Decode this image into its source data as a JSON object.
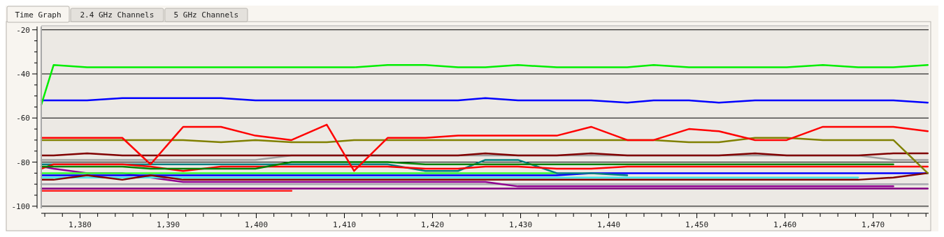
{
  "chart_data": {
    "type": "line",
    "annotations": [
      "Time Graph",
      "2.4 GHz Channels",
      "5 GHz Channels"
    ],
    "x": [
      1375.6,
      1377.0,
      1380.8,
      1384.8,
      1388.0,
      1391.7,
      1396.0,
      1399.9,
      1404.0,
      1408.0,
      1411.1,
      1414.9,
      1419.2,
      1422.9,
      1426.0,
      1429.7,
      1434.1,
      1438.0,
      1442.1,
      1445.1,
      1449.1,
      1452.5,
      1456.6,
      1460.2,
      1464.3,
      1468.3,
      1472.3,
      1476.2
    ],
    "xlim": [
      1375.6,
      1476.3
    ],
    "xticks": [
      {
        "value": 1376,
        "label": null
      },
      {
        "value": 1378,
        "label": null
      },
      {
        "value": 1380,
        "label": "1,380"
      },
      {
        "value": 1382,
        "label": null
      },
      {
        "value": 1384,
        "label": null
      },
      {
        "value": 1386,
        "label": null
      },
      {
        "value": 1388,
        "label": null
      },
      {
        "value": 1390,
        "label": "1,390"
      },
      {
        "value": 1392,
        "label": null
      },
      {
        "value": 1394,
        "label": null
      },
      {
        "value": 1396,
        "label": null
      },
      {
        "value": 1398,
        "label": null
      },
      {
        "value": 1400,
        "label": "1,400"
      },
      {
        "value": 1402,
        "label": null
      },
      {
        "value": 1404,
        "label": null
      },
      {
        "value": 1406,
        "label": null
      },
      {
        "value": 1408,
        "label": null
      },
      {
        "value": 1410,
        "label": "1,410"
      },
      {
        "value": 1412,
        "label": null
      },
      {
        "value": 1414,
        "label": null
      },
      {
        "value": 1416,
        "label": null
      },
      {
        "value": 1418,
        "label": null
      },
      {
        "value": 1420,
        "label": "1,420"
      },
      {
        "value": 1422,
        "label": null
      },
      {
        "value": 1424,
        "label": null
      },
      {
        "value": 1426,
        "label": null
      },
      {
        "value": 1428,
        "label": null
      },
      {
        "value": 1430,
        "label": "1,430"
      },
      {
        "value": 1432,
        "label": null
      },
      {
        "value": 1434,
        "label": null
      },
      {
        "value": 1436,
        "label": null
      },
      {
        "value": 1438,
        "label": null
      },
      {
        "value": 1440,
        "label": "1,440"
      },
      {
        "value": 1442,
        "label": null
      },
      {
        "value": 1444,
        "label": null
      },
      {
        "value": 1446,
        "label": null
      },
      {
        "value": 1448,
        "label": null
      },
      {
        "value": 1450,
        "label": "1,450"
      },
      {
        "value": 1452,
        "label": null
      },
      {
        "value": 1454,
        "label": null
      },
      {
        "value": 1456,
        "label": null
      },
      {
        "value": 1458,
        "label": null
      },
      {
        "value": 1460,
        "label": "1,460"
      },
      {
        "value": 1462,
        "label": null
      },
      {
        "value": 1464,
        "label": null
      },
      {
        "value": 1466,
        "label": null
      },
      {
        "value": 1468,
        "label": null
      },
      {
        "value": 1470,
        "label": "1,470"
      },
      {
        "value": 1472,
        "label": null
      },
      {
        "value": 1474,
        "label": null
      },
      {
        "value": 1476,
        "label": null
      }
    ],
    "ylim": [
      -101,
      -18.5
    ],
    "yticks": [
      -20,
      {
        "value": -25,
        "label": null
      },
      {
        "value": -30,
        "label": null
      },
      {
        "value": -35,
        "label": null
      },
      -40,
      {
        "value": -45,
        "label": null
      },
      {
        "value": -50,
        "label": null
      },
      {
        "value": -55,
        "label": null
      },
      -60,
      {
        "value": -65,
        "label": null
      },
      {
        "value": -70,
        "label": null
      },
      {
        "value": -75,
        "label": null
      },
      -80,
      {
        "value": -85,
        "label": null
      },
      {
        "value": -90,
        "label": null
      },
      {
        "value": -95,
        "label": null
      },
      -100
    ],
    "grid": "y",
    "marker": "none",
    "line_style": "solid",
    "series": [
      {
        "color": "#a8a8b0",
        "values": [
          -90,
          -90,
          -90,
          -90,
          -90,
          -90,
          -90,
          -90,
          -90,
          -90,
          -90,
          -90,
          -90,
          -90,
          -90,
          -90,
          -90,
          -90,
          -90,
          -90,
          -90,
          -90,
          -90,
          -90,
          -90,
          -90,
          -90,
          -90
        ]
      },
      {
        "color": "#ff2020",
        "values": [
          -93,
          -93,
          -93,
          -93,
          -93,
          -93,
          -93,
          -93,
          -93,
          null,
          null,
          null,
          null,
          null,
          null,
          null,
          null,
          null,
          null,
          null,
          null,
          null,
          null,
          null,
          null,
          null,
          null,
          null
        ]
      },
      {
        "color": "#800080",
        "values": [
          -92,
          -92,
          -92,
          -92,
          -92,
          -92,
          -92,
          -92,
          -92,
          -92,
          -92,
          -92,
          -92,
          -92,
          -92,
          -92,
          -92,
          -92,
          -92,
          -92,
          -92,
          -92,
          -92,
          -92,
          -92,
          -92,
          -92,
          -92
        ]
      },
      {
        "color": "#900090",
        "values": [
          -82,
          -83,
          -85,
          -85,
          -87,
          -89,
          -89,
          -89,
          -89,
          -89,
          -89,
          -89,
          -89,
          -89,
          -89,
          -91,
          -91,
          -91,
          -91,
          -91,
          -91,
          -91,
          -91,
          -91,
          -91,
          -91,
          -91,
          null
        ]
      },
      {
        "color": "#30ff30",
        "values": [
          -85,
          -85,
          -85,
          -85,
          -85,
          -85,
          -85,
          -85,
          -85,
          -85,
          -85,
          -85,
          -85,
          -85,
          -85,
          -85,
          -85,
          null,
          null,
          null,
          null,
          null,
          null,
          null,
          null,
          null,
          null,
          null
        ]
      },
      {
        "color": "#0000ff",
        "values": [
          -86,
          -86,
          -86,
          -86,
          -86,
          -86,
          -86,
          -86,
          -86,
          -86,
          -86,
          -86,
          -86,
          -86,
          -86,
          -86,
          -86,
          -85,
          -85,
          -85,
          -85,
          -85,
          -85,
          -85,
          -85,
          -85,
          -85,
          -85
        ]
      },
      {
        "color": "#40e8e8",
        "values": [
          -87,
          -87,
          -87,
          -87,
          -87,
          -87,
          -87,
          -87,
          -87,
          -87,
          -87,
          -87,
          -87,
          -87,
          -87,
          -87,
          -87,
          -87,
          -87,
          -87,
          -87,
          -87,
          -87,
          -87,
          -87,
          -87,
          null,
          null
        ]
      },
      {
        "color": "#800000",
        "values": [
          -88,
          -88,
          -86,
          -88,
          -86,
          -88,
          -88,
          -88,
          -88,
          -88,
          -88,
          -88,
          -88,
          -88,
          -88,
          -88,
          -88,
          -88,
          -88,
          -88,
          -88,
          -88,
          -88,
          -88,
          -88,
          -88,
          -87,
          -85
        ]
      },
      {
        "color": "#008080",
        "values": [
          -81,
          -81,
          -81,
          -81,
          -81,
          -81,
          -81,
          -81,
          -81,
          -81,
          -81,
          -81,
          -84,
          -84,
          -79,
          -79,
          -85,
          -85,
          -86,
          null,
          null,
          null,
          null,
          null,
          null,
          null,
          null,
          null
        ]
      },
      {
        "color": "#ff0000",
        "values": [
          -83,
          -81,
          -81,
          -81,
          -82,
          -84,
          -82,
          -82,
          -82,
          -82,
          -82,
          -82,
          -83,
          -83,
          -82,
          -82,
          -83,
          -83,
          -82,
          -82,
          -82,
          -82,
          -82,
          -82,
          -82,
          -82,
          -82,
          -82
        ]
      },
      {
        "color": "#008000",
        "values": [
          -82,
          -82,
          -82,
          -82,
          -83,
          -83,
          -83,
          -83,
          -80,
          -80,
          -80,
          -80,
          -81,
          -81,
          -81,
          -81,
          -81,
          -81,
          -81,
          -81,
          -81,
          -81,
          -81,
          -81,
          -81,
          -81,
          -81,
          null
        ]
      },
      {
        "color": "#a0a0a0",
        "values": [
          -79,
          -79,
          -79,
          -79,
          -79,
          -79,
          -79,
          -79,
          -77,
          -77,
          -77,
          -77,
          -77,
          -77,
          -77,
          -77,
          -77,
          -77,
          -77,
          -77,
          -77,
          -77,
          -77,
          -77,
          -77,
          -77,
          -79,
          -79
        ]
      },
      {
        "color": "#800000",
        "values": [
          -77,
          -77,
          -76,
          -77,
          -77,
          -77,
          -77,
          -77,
          -77,
          -77,
          -77,
          -77,
          -77,
          -77,
          -76,
          -77,
          -77,
          -76,
          -77,
          -77,
          -77,
          -77,
          -76,
          -77,
          -77,
          -77,
          -76,
          -76
        ]
      },
      {
        "color": "#808000",
        "values": [
          -70,
          -70,
          -70,
          -70,
          -70,
          -70,
          -71,
          -70,
          -71,
          -71,
          -70,
          -70,
          -70,
          -70,
          -70,
          -70,
          -70,
          -70,
          -70,
          -70,
          -71,
          -71,
          -69,
          -69,
          -70,
          -70,
          -70,
          -85
        ]
      },
      {
        "color": "#ff0000",
        "values": [
          -69,
          -69,
          -69,
          -69,
          -81,
          -64,
          -64,
          -68,
          -70,
          -63,
          -84,
          -69,
          -69,
          -68,
          -68,
          -68,
          -68,
          -64,
          -70,
          -70,
          -65,
          -66,
          -70,
          -70,
          -64,
          -64,
          -64,
          -66
        ]
      },
      {
        "color": "#0000ff",
        "values": [
          -52,
          -52,
          -52,
          -51,
          -51,
          -51,
          -51,
          -52,
          -52,
          -52,
          -52,
          -52,
          -52,
          -52,
          -51,
          -52,
          -52,
          -52,
          -53,
          -52,
          -52,
          -53,
          -52,
          -52,
          -52,
          -52,
          -52,
          -53
        ]
      },
      {
        "color": "#00ee00",
        "values": [
          -54,
          -36,
          -37,
          -37,
          -37,
          -37,
          -37,
          -37,
          -37,
          -37,
          -37,
          -36,
          -36,
          -37,
          -37,
          -36,
          -37,
          -37,
          -37,
          -36,
          -37,
          -37,
          -37,
          -37,
          -36,
          -37,
          -37,
          -36
        ]
      }
    ]
  }
}
